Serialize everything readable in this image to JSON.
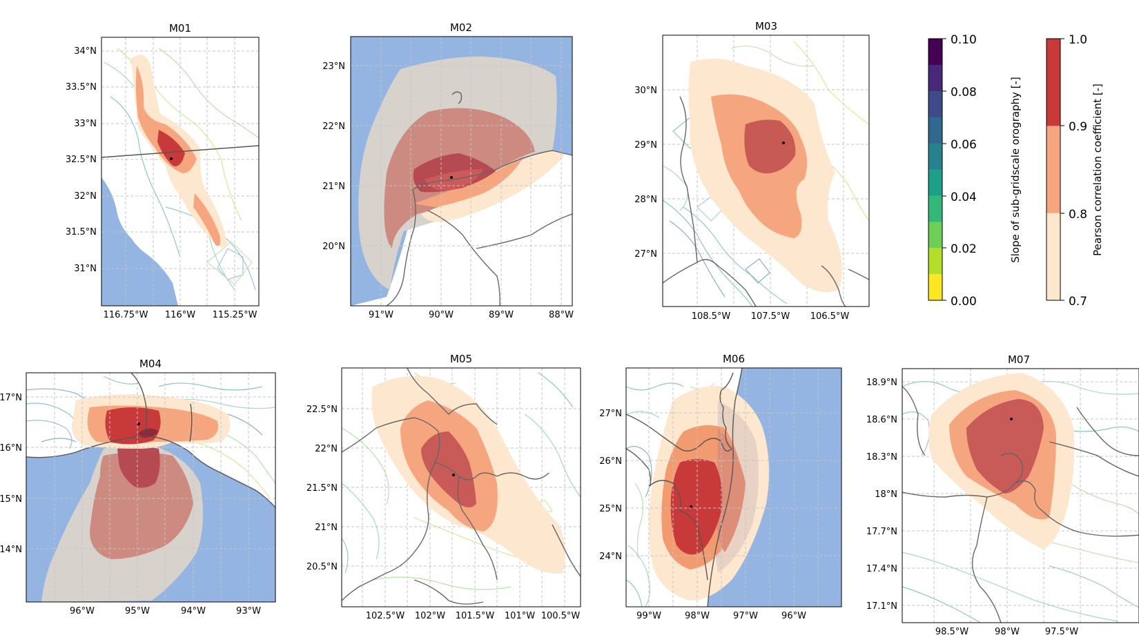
{
  "panels": [
    {
      "title": "M01",
      "x_ticks": [
        "116.75°W",
        "116°W",
        "115.25°W"
      ],
      "y_ticks": [
        "34°N",
        "33.5°N",
        "33°N",
        "32.5°N",
        "32°N",
        "31.5°N",
        "31°N"
      ]
    },
    {
      "title": "M02",
      "x_ticks": [
        "91°W",
        "90°W",
        "89°W",
        "88°W"
      ],
      "y_ticks": [
        "23°N",
        "22°N",
        "21°N",
        "20°N"
      ]
    },
    {
      "title": "M03",
      "x_ticks": [
        "108.5°W",
        "107.5°W",
        "106.5°W"
      ],
      "y_ticks": [
        "30°N",
        "29°N",
        "28°N",
        "27°N"
      ]
    },
    {
      "title": "M04",
      "x_ticks": [
        "96°W",
        "95°W",
        "94°W",
        "93°W"
      ],
      "y_ticks": [
        "17°N",
        "16°N",
        "15°N",
        "14°N"
      ]
    },
    {
      "title": "M05",
      "x_ticks": [
        "102.5°W",
        "102°W",
        "101.5°W",
        "101°W",
        "100.5°W"
      ],
      "y_ticks": [
        "22.5°N",
        "22°N",
        "21.5°N",
        "21°N",
        "20.5°N"
      ]
    },
    {
      "title": "M06",
      "x_ticks": [
        "99°W",
        "98°W",
        "97°W",
        "96°W"
      ],
      "y_ticks": [
        "27°N",
        "26°N",
        "25°N",
        "24°N"
      ]
    },
    {
      "title": "M07",
      "x_ticks": [
        "98.5°W",
        "98°W",
        "97.5°W"
      ],
      "y_ticks": [
        "18.9°N",
        "18.6°N",
        "18.3°N",
        "18°N",
        "17.7°N",
        "17.4°N",
        "17.1°N"
      ]
    }
  ],
  "colorbar_orography": {
    "label": "Slope of sub-gridscale orography [-]",
    "ticks": [
      "0.10",
      "0.08",
      "0.06",
      "0.04",
      "0.02",
      "0.00"
    ],
    "colors": [
      "#440154",
      "#482878",
      "#3e4a89",
      "#31688e",
      "#26828e",
      "#1f9e89",
      "#35b779",
      "#6ece58",
      "#b5de2b",
      "#fde725"
    ]
  },
  "colorbar_correlation": {
    "label": "Pearson correlation coefficient [-]",
    "ticks": [
      "1.0",
      "0.9",
      "0.8",
      "0.7"
    ],
    "colors": [
      "#c83a3a",
      "#f6a67e",
      "#fde7cf"
    ]
  },
  "map_colors": {
    "sea": "#94b4e2",
    "gray_region": "#d8d2cc",
    "corr_09": "#c83a3a",
    "corr_08": "#f6a67e",
    "corr_07": "#fde7cf"
  }
}
